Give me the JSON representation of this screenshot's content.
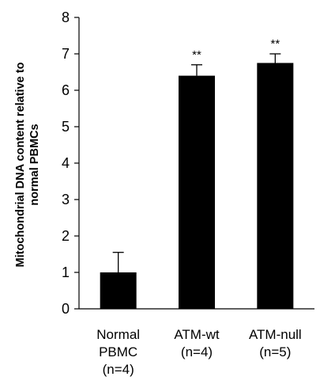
{
  "chart_data": {
    "type": "bar",
    "categories": [
      [
        "Normal",
        "PBMC",
        "(n=4)"
      ],
      [
        "ATM-wt",
        "(n=4)"
      ],
      [
        "ATM-null",
        "(n=5)"
      ]
    ],
    "values": [
      1.0,
      6.4,
      6.75
    ],
    "errors": [
      0.55,
      0.3,
      0.25
    ],
    "annotations": [
      "",
      "**",
      "**"
    ],
    "ylabel_lines": [
      "Mitochondrial DNA content relative to",
      "normal PBMCs"
    ],
    "xlabel": "",
    "title": "",
    "ylim": [
      0,
      8
    ],
    "yticks": [
      "0",
      "1",
      "2",
      "3",
      "4",
      "5",
      "6",
      "7",
      "8"
    ],
    "grid": false,
    "bar_color": "#000000"
  }
}
